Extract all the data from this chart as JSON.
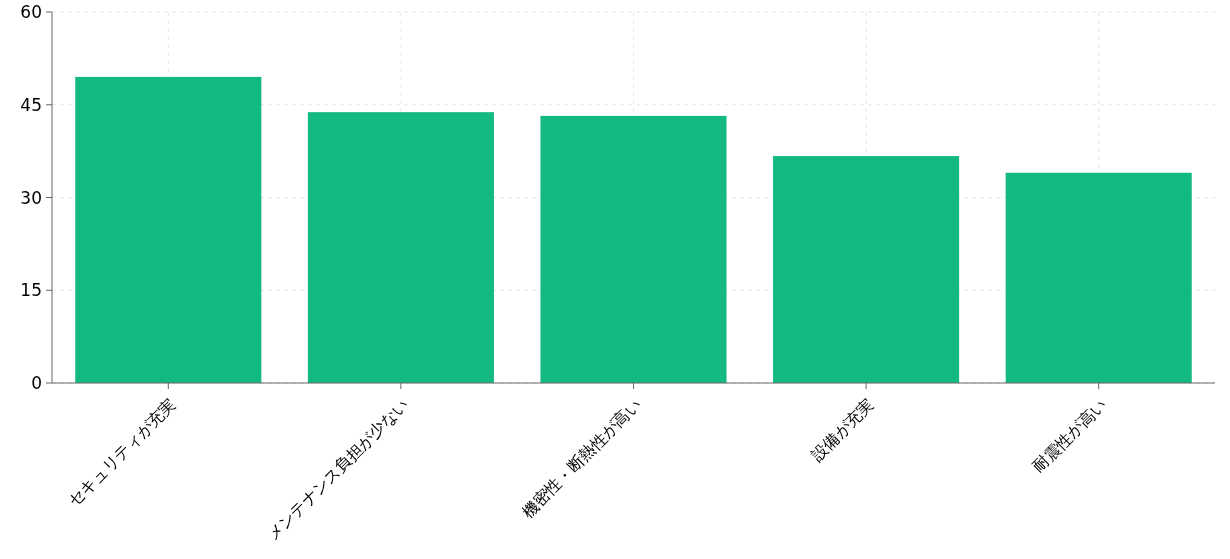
{
  "chart_data": {
    "type": "bar",
    "categories": [
      "セキュリティが充実",
      "メンテナンス負担が少ない",
      "機密性・断熱性が高い",
      "設備が充実",
      "耐震性が高い"
    ],
    "values": [
      49.5,
      43.8,
      43.2,
      36.7,
      34.0
    ],
    "color": "#12b981",
    "ylim": [
      0,
      60
    ],
    "yticks": [
      0,
      15,
      30,
      45,
      60
    ],
    "grid": true
  }
}
